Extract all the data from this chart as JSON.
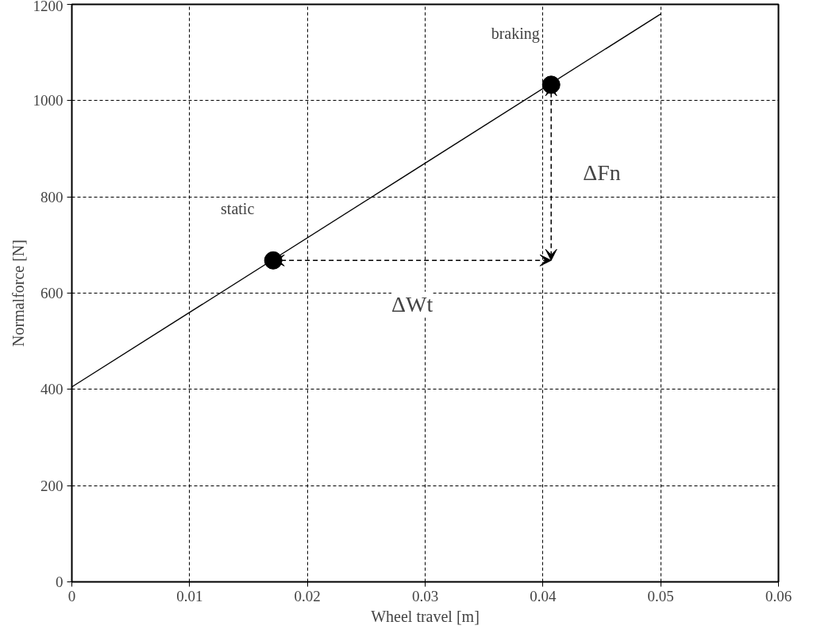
{
  "chart_data": {
    "type": "line",
    "xlabel": "Wheel travel [m]",
    "ylabel": "Normalforce [N]",
    "xlim": [
      0,
      0.06
    ],
    "ylim": [
      0,
      1200
    ],
    "xticks": [
      0,
      0.01,
      0.02,
      0.03,
      0.04,
      0.05,
      0.06
    ],
    "yticks": [
      0,
      200,
      400,
      600,
      800,
      1000,
      1200
    ],
    "grid": true,
    "line_style": "solid",
    "series": [
      {
        "x": [
          0,
          0.05
        ],
        "values": [
          405,
          1180
        ],
        "color": "#000000",
        "marker": "none"
      },
      {
        "type": "scatter",
        "x": [
          0.0171,
          0.0407
        ],
        "values": [
          668,
          1033
        ],
        "color": "#000000",
        "marker": "circle"
      }
    ],
    "annotations": [
      {
        "text": "static",
        "x": 0.0171,
        "y": 668
      },
      {
        "text": "braking",
        "x": 0.0407,
        "y": 1033
      },
      "ΔWt",
      "ΔFn"
    ]
  }
}
